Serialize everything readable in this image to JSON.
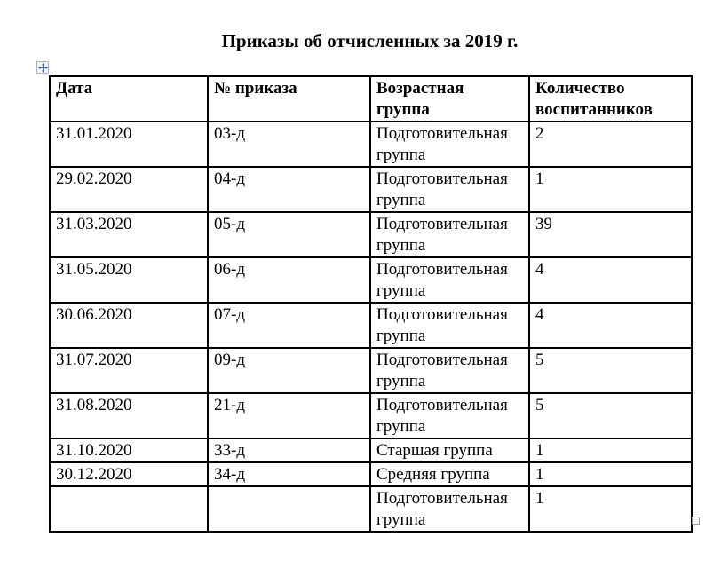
{
  "document": {
    "title": "Приказы об отчисленных за 2019 г."
  },
  "table": {
    "headers": [
      "Дата",
      "№ приказа",
      "Возрастная\nгруппа",
      "Количество\nвоспитанников"
    ],
    "rows": [
      [
        "31.01.2020",
        "03-д",
        "Подготовительная\nгруппа",
        "2"
      ],
      [
        "29.02.2020",
        "04-д",
        "Подготовительная\nгруппа",
        "1"
      ],
      [
        "31.03.2020",
        "05-д",
        "Подготовительная\nгруппа",
        "39"
      ],
      [
        "31.05.2020",
        "06-д",
        "Подготовительная\nгруппа",
        "4"
      ],
      [
        "30.06.2020",
        "07-д",
        "Подготовительная\nгруппа",
        "4"
      ],
      [
        "31.07.2020",
        "09-д",
        "Подготовительная\nгруппа",
        "5"
      ],
      [
        "31.08.2020",
        "21-д",
        "Подготовительная\nгруппа",
        "5"
      ],
      [
        "31.10.2020",
        "33-д",
        "Старшая группа",
        "1"
      ],
      [
        "30.12.2020",
        "34-д",
        "Средняя группа",
        "1"
      ],
      [
        "",
        "",
        "Подготовительная\nгруппа",
        "1"
      ]
    ]
  },
  "icons": {
    "move_handle": "move-arrows-icon",
    "resize_handle": "resize-square-icon"
  },
  "colors": {
    "text": "#000000",
    "table_border": "#000000",
    "move_arrow": "#4a6ea9",
    "move_handle_border": "#a7b4cd",
    "move_handle_bg": "#f5f7fc",
    "resize_handle_border": "#9b9b9b",
    "background": "#ffffff"
  }
}
